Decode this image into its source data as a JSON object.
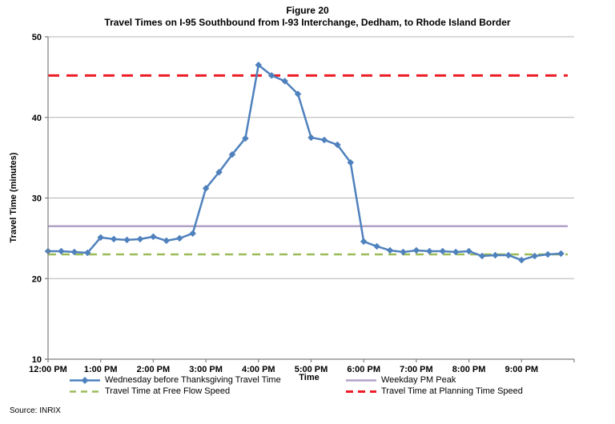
{
  "figure": {
    "title_line1": "Figure 20",
    "title_line2": "Travel Times on I-95 Southbound from I-93 Interchange, Dedham, to Rhode Island Border",
    "source": "Source: INRIX"
  },
  "colors": {
    "series_blue": "#4F81BD",
    "pm_peak_purple": "#B2A1C7",
    "free_flow_green": "#9BBB59",
    "planning_red": "#EE1C25",
    "gridline_gray": "#B3B3B3",
    "axis_gray": "#7F7F7F"
  },
  "chart_data": {
    "type": "line",
    "title": "Travel Times on I-95 Southbound from I-93 Interchange, Dedham, to Rhode Island Border",
    "xlabel": "Time",
    "ylabel": "Travel Time (minutes)",
    "ylim": [
      10,
      50
    ],
    "y_ticks": [
      10,
      20,
      30,
      40,
      50
    ],
    "x_tick_labels": [
      "12:00 PM",
      "1:00 PM",
      "2:00 PM",
      "3:00 PM",
      "4:00 PM",
      "5:00 PM",
      "6:00 PM",
      "7:00 PM",
      "8:00 PM",
      "9:00 PM"
    ],
    "x_range_hours": [
      "12:00 PM",
      "10:00 PM"
    ],
    "grid": "horizontal",
    "legend_position": "bottom",
    "series": [
      {
        "name": "Wednesday before Thanksgiving Travel Time",
        "color": "#4F81BD",
        "style": "solid-diamond-markers",
        "x": [
          "12:00 PM",
          "12:15 PM",
          "12:30 PM",
          "12:45 PM",
          "1:00 PM",
          "1:15 PM",
          "1:30 PM",
          "1:45 PM",
          "2:00 PM",
          "2:15 PM",
          "2:30 PM",
          "2:45 PM",
          "3:00 PM",
          "3:15 PM",
          "3:30 PM",
          "3:45 PM",
          "4:00 PM",
          "4:15 PM",
          "4:30 PM",
          "4:45 PM",
          "5:00 PM",
          "5:15 PM",
          "5:30 PM",
          "5:45 PM",
          "6:00 PM",
          "6:15 PM",
          "6:30 PM",
          "6:45 PM",
          "7:00 PM",
          "7:15 PM",
          "7:30 PM",
          "7:45 PM",
          "8:00 PM",
          "8:15 PM",
          "8:30 PM",
          "8:45 PM",
          "9:00 PM",
          "9:15 PM",
          "9:30 PM",
          "9:45 PM"
        ],
        "values": [
          23.4,
          23.4,
          23.3,
          23.2,
          25.1,
          24.9,
          24.8,
          24.9,
          25.2,
          24.7,
          25.0,
          25.6,
          31.2,
          33.2,
          35.4,
          37.4,
          46.5,
          45.2,
          44.5,
          42.9,
          37.5,
          37.2,
          36.6,
          34.4,
          24.6,
          24.0,
          23.5,
          23.3,
          23.5,
          23.4,
          23.4,
          23.3,
          23.4,
          22.8,
          22.9,
          22.9,
          22.3,
          22.8,
          23.0,
          23.1
        ]
      }
    ],
    "reference_lines": [
      {
        "name": "Weekday PM Peak",
        "value": 26.5,
        "color": "#B2A1C7",
        "style": "solid"
      },
      {
        "name": "Travel Time at Free Flow Speed",
        "value": 23.0,
        "color": "#9BBB59",
        "style": "dashed"
      },
      {
        "name": "Travel Time at Planning Time Speed",
        "value": 45.2,
        "color": "#EE1C25",
        "style": "dashed"
      }
    ]
  }
}
